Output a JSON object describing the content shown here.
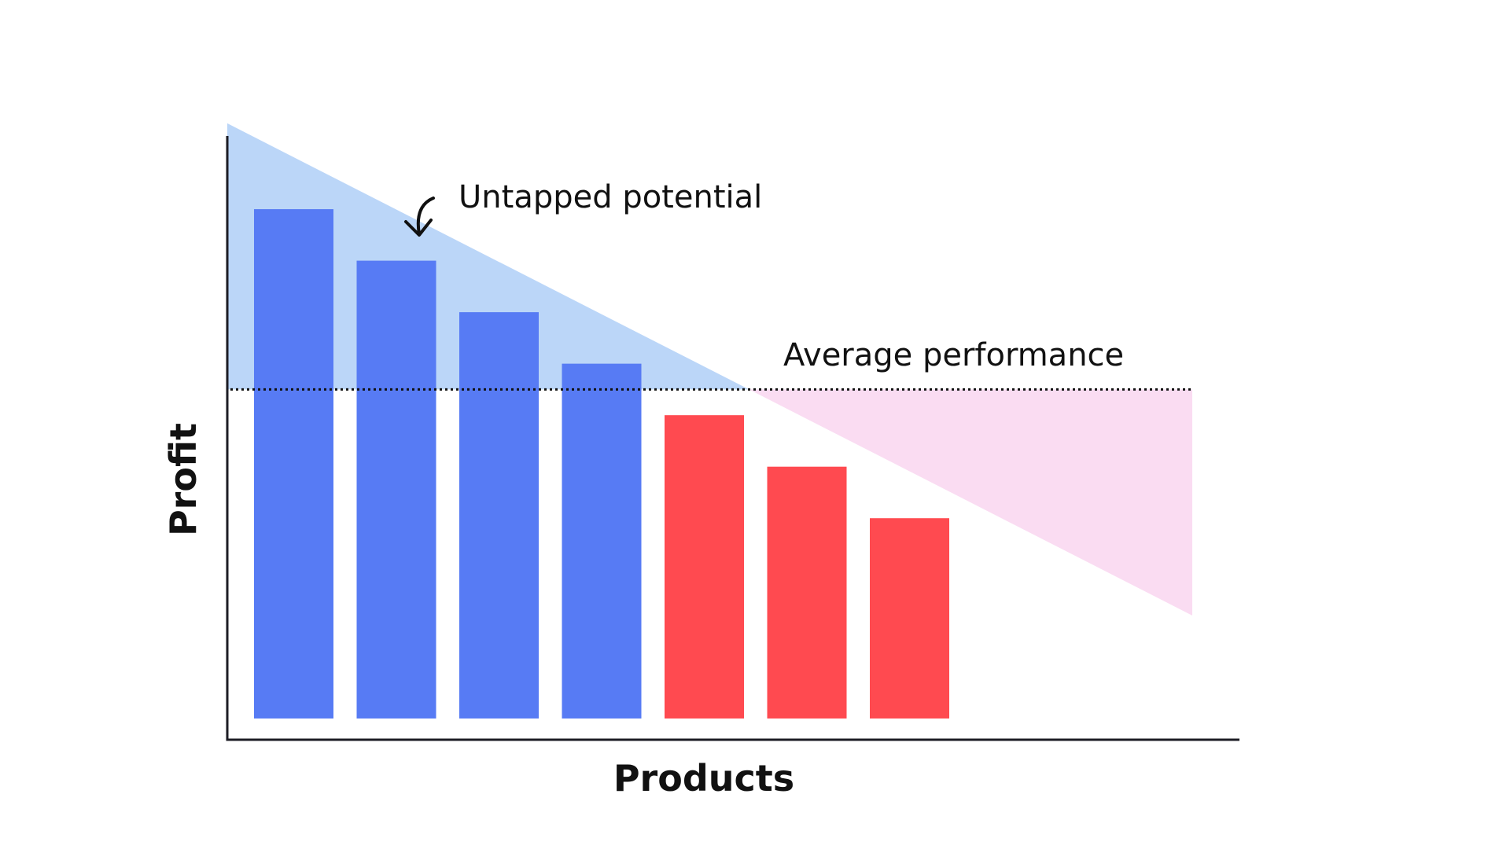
{
  "chart_data": {
    "type": "bar",
    "title": "",
    "xlabel": "Products",
    "ylabel": "Profit",
    "ylim": [
      0,
      100
    ],
    "grid": false,
    "legend": "none",
    "categories": [
      "",
      "",
      "",
      "",
      "",
      "",
      ""
    ],
    "values": [
      89,
      80,
      71,
      62,
      53,
      44,
      35
    ],
    "bar_colors": [
      "#577BF4",
      "#577BF4",
      "#577BF4",
      "#577BF4",
      "#FF4A50",
      "#FF4A50",
      "#FF4A50"
    ],
    "average_line": {
      "value": 57.5,
      "label": "Average performance",
      "style": "dotted",
      "color": "#111111"
    },
    "trend_area": {
      "start_value": 104,
      "end_value": 18,
      "above_average_color": "#BBD6F8",
      "below_average_color": "#FADCF2"
    },
    "annotations": [
      {
        "text": "Untapped potential",
        "icon": "curved-arrow-down-icon"
      }
    ],
    "colors": {
      "axis": "#1C1C24",
      "text": "#111111"
    }
  }
}
